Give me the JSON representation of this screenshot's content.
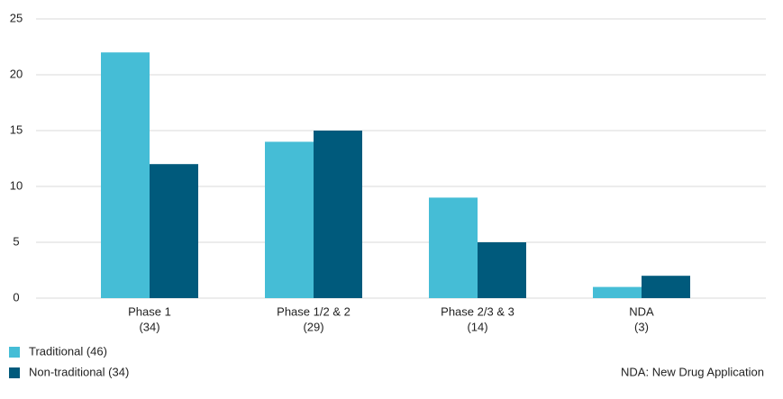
{
  "chart_data": {
    "type": "bar",
    "categories": [
      [
        "Phase 1",
        "(34)"
      ],
      [
        "Phase 1/2 & 2",
        "(29)"
      ],
      [
        "Phase 2/3 & 3",
        "(14)"
      ],
      [
        "NDA",
        "(3)"
      ]
    ],
    "series": [
      {
        "name": "Traditional (46)",
        "color": "#45bdd6",
        "values": [
          22,
          14,
          9,
          1
        ]
      },
      {
        "name": "Non-traditional (34)",
        "color": "#005a7c",
        "values": [
          12,
          15,
          5,
          2
        ]
      }
    ],
    "ylim": [
      0,
      25
    ],
    "yticks": [
      0,
      5,
      10,
      15,
      20,
      25
    ],
    "grid": true,
    "annotation": "NDA: New Drug Application"
  }
}
